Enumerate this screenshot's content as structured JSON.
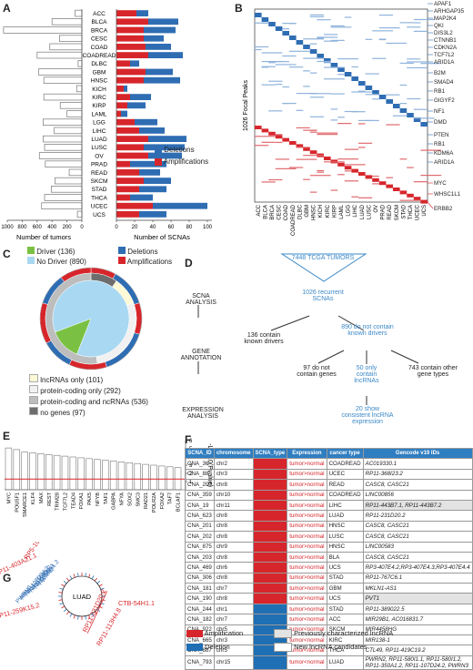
{
  "panel_labels": {
    "a": "A",
    "b": "B",
    "c": "C",
    "d": "D",
    "e": "E",
    "f": "F",
    "g": "G"
  },
  "chart_data": [
    {
      "type": "bar",
      "panel": "A-left",
      "categories": [
        "ACC",
        "BLCA",
        "BRCA",
        "CESC",
        "COAD",
        "COADREAD",
        "DLBC",
        "GBM",
        "HNSC",
        "KICH",
        "KIRC",
        "KIRP",
        "LAML",
        "LGG",
        "LIHC",
        "LUAD",
        "LUSC",
        "OV",
        "PRAD",
        "READ",
        "SKCM",
        "STAD",
        "THCA",
        "UCEC",
        "UCS"
      ],
      "values": [
        90,
        400,
        1050,
        300,
        430,
        600,
        50,
        580,
        510,
        70,
        510,
        290,
        200,
        520,
        370,
        520,
        500,
        570,
        490,
        170,
        360,
        410,
        500,
        540,
        60
      ],
      "xlabel": "Number of tumors",
      "xticks": [
        1000,
        800,
        600,
        400,
        200,
        0
      ],
      "xlim": [
        0,
        1100
      ]
    },
    {
      "type": "bar",
      "panel": "A-right",
      "categories": [
        "ACC",
        "BLCA",
        "BRCA",
        "CESC",
        "COAD",
        "COADREAD",
        "DLBC",
        "GBM",
        "HNSC",
        "KICH",
        "KIRC",
        "KIRP",
        "LAML",
        "LGG",
        "LIHC",
        "LUAD",
        "LUSC",
        "OV",
        "PRAD",
        "READ",
        "SKCM",
        "STAD",
        "THCA",
        "UCEC",
        "UCS"
      ],
      "series": [
        {
          "name": "Amplifications",
          "color": "#d7262b",
          "values": [
            22,
            35,
            30,
            30,
            32,
            35,
            15,
            32,
            30,
            8,
            15,
            12,
            5,
            20,
            25,
            35,
            30,
            35,
            15,
            25,
            30,
            25,
            15,
            40,
            25
          ]
        },
        {
          "name": "Deletions",
          "color": "#2f6db3",
          "values": [
            13,
            33,
            35,
            22,
            28,
            38,
            10,
            30,
            40,
            4,
            23,
            20,
            7,
            25,
            28,
            42,
            45,
            37,
            40,
            23,
            30,
            30,
            25,
            60,
            30
          ]
        }
      ],
      "xlabel": "Number of SCNAs",
      "xticks": [
        0,
        20,
        40,
        60,
        80,
        100
      ],
      "xlim": [
        0,
        110
      ],
      "legend": [
        "Deletions",
        "Amplifications"
      ]
    }
  ],
  "panel_b": {
    "ylabel": "1026 Focal Peaks",
    "genes": [
      "APAF1",
      "ARHGAP35",
      "MAP2K4",
      "QKI",
      "DIS3L2",
      "CTNNB1",
      "CDKN2A",
      "TCF7L2",
      "ARID1A",
      "B2M",
      "SMAD4",
      "RB1",
      "GIGYF2",
      "NF1",
      "DMD",
      "PTEN",
      "RB1",
      "KDM6A",
      "ARID1A",
      "MYC",
      "WHSC1L1",
      "ERBB2"
    ],
    "columns": [
      "ACC",
      "BLCA",
      "BRCA",
      "CESC",
      "COAD",
      "COADREAD",
      "DLBC",
      "GBM",
      "HNSC",
      "KICH",
      "KIRC",
      "KIRP",
      "LAML",
      "LGG",
      "LIHC",
      "LUAD",
      "LUSC",
      "OV",
      "PRAD",
      "READ",
      "SKCM",
      "STAD",
      "THCA",
      "UCEC",
      "UCS"
    ]
  },
  "panel_c": {
    "legend_top": [
      {
        "label": "Driver (136)",
        "color": "#7ac143"
      },
      {
        "label": "No Driver (890)",
        "color": "#a9d8f2"
      }
    ],
    "legend_right": [
      {
        "label": "Deletions",
        "color": "#2f6db3"
      },
      {
        "label": "Amplifications",
        "color": "#d7262b"
      }
    ],
    "legend_bottom": [
      {
        "label": "lncRNAs only (101)",
        "color": "#fdf8d5"
      },
      {
        "label": "protein-coding only (292)",
        "color": "#f1f1f1"
      },
      {
        "label": "protein-coding and ncRNAs (536)",
        "color": "#bdbdbd"
      },
      {
        "label": "no genes (97)",
        "color": "#6d6d6d"
      }
    ]
  },
  "panel_d": {
    "top": "7448 TCGA TUMORS",
    "recurrent": "1026 recurrent SCNAs",
    "left": "136 contain known drivers",
    "right": "890 do not contain known drivers",
    "no_genes": "97 do not contain genes",
    "lnc": "50 only contain lncRNAs",
    "other": "743 contain other gene types",
    "expr": "20 show consistent lncRNA expression",
    "steps": [
      "SCNA ANALYSIS",
      "GENE ANNOTATION",
      "EXPRESSION ANALYSIS"
    ]
  },
  "panel_e": {
    "genes": [
      "MYC",
      "POU5F1",
      "SMARCE1",
      "KLF4",
      "MAX",
      "REST",
      "TRIM28",
      "TCF7L2",
      "TEAD4",
      "FOXA1",
      "PAX5",
      "NFYB",
      "TAF1",
      "GABPA",
      "NFYA",
      "SOX2",
      "SMC3",
      "RAD21",
      "POLR2A",
      "FOXA2",
      "TAF7",
      "BCLAF1"
    ],
    "values": [
      5.1,
      4.9,
      4.6,
      4.5,
      4.4,
      4.3,
      4.2,
      4.1,
      4.0,
      3.9,
      3.8,
      3.7,
      3.6,
      3.5,
      3.4,
      3.3,
      3.2,
      3.1,
      3.0,
      2.9,
      2.8,
      2.7
    ],
    "ylabel": "-Log10(Pvalue)",
    "yticks": [
      1,
      2,
      3,
      4,
      5,
      6
    ],
    "ylim": [
      0,
      6
    ],
    "threshold": 1.3
  },
  "panel_f": {
    "headers": [
      "SCNA_ID",
      "chromosome",
      "SCNA_type",
      "Expression",
      "cancer type",
      "Gencode v19 IDs"
    ],
    "rows": [
      [
        "CNA_36",
        "chr2",
        "amp",
        "tumor>normal",
        "COADREAD",
        "AC019330.1",
        "new"
      ],
      [
        "CNA_88",
        "chr3",
        "amp",
        "tumor>normal",
        "UCEC",
        "RP11-368I23.2",
        "new"
      ],
      [
        "CNA_200",
        "chr8",
        "amp",
        "tumor>normal",
        "READ",
        "CASC8, CASC21",
        "new"
      ],
      [
        "CNA_359",
        "chr10",
        "amp",
        "tumor>normal",
        "COADREAD",
        "LINC00856",
        "new"
      ],
      [
        "CNA_19",
        "chr11",
        "amp",
        "tumor>normal",
        "LIHC",
        "RP11-443B7.1, RP11-443B7.2",
        "old"
      ],
      [
        "CNA_623",
        "chr8",
        "amp",
        "tumor>normal",
        "LUAD",
        "RP11-231D20.2",
        "new"
      ],
      [
        "CNA_201",
        "chr8",
        "amp",
        "tumor>normal",
        "HNSC",
        "CASC8, CASC21",
        "new"
      ],
      [
        "CNA_202",
        "chr8",
        "amp",
        "tumor>normal",
        "LUSC",
        "CASC8, CASC21",
        "new"
      ],
      [
        "CNA_875",
        "chr9",
        "amp",
        "tumor>normal",
        "HNSC",
        "LINC00583",
        "new"
      ],
      [
        "CNA_203",
        "chr8",
        "amp",
        "tumor>normal",
        "BLA",
        "CASC8, CASC21",
        "new"
      ],
      [
        "CNA_469",
        "chr6",
        "amp",
        "tumor>normal",
        "UCS",
        "RP3-407E4.2,RP3-407E4.3,RP3-407E4.4",
        "new"
      ],
      [
        "CNA_306",
        "chr8",
        "amp",
        "tumor>normal",
        "STAD",
        "RP11-767C6.1",
        "new"
      ],
      [
        "CNA_181",
        "chr7",
        "amp",
        "tumor>normal",
        "GBM",
        "MKLN1-AS1",
        "new"
      ],
      [
        "CNA_190",
        "chr8",
        "amp",
        "tumor>normal",
        "UCS",
        "PVT1",
        "old"
      ],
      [
        "CNA_244",
        "chr1",
        "del",
        "tumor>normal",
        "STAD",
        "RP11-389022.5",
        "new"
      ],
      [
        "CNA_182",
        "chr7",
        "del",
        "tumor<normal",
        "ACC",
        "MIR29B1, AC016831.7",
        "new"
      ],
      [
        "CNA_922",
        "chr5",
        "del",
        "tumor<normal",
        "SKCM",
        "MIR4458HG",
        "new"
      ],
      [
        "CNA_665",
        "chr3",
        "del",
        "tumor<normal",
        "KIRC",
        "MIR138-1",
        "new"
      ],
      [
        "CNA_887",
        "chr5",
        "del",
        "tumor<normal",
        "THCA",
        "CTL49, RP11-419C19.2",
        "new"
      ],
      [
        "CNA_793",
        "chr15",
        "del",
        "tumor<normal",
        "LUAD",
        "PWRN2, RP11-580I1.1, RP11-580I1.2, RP11-350A1.2, RP11-107D24.2, PWRN3",
        "new"
      ]
    ],
    "legend": {
      "amp": "Amplification",
      "del": "Deletion",
      "old": "Previously characterized lncRNA",
      "new": "New lncRNA candidates"
    }
  },
  "panel_g": {
    "center": "LUAD",
    "red_labels": [
      "RP5-1084B",
      "RP11-403A21.1",
      "CTB-54H1.1",
      "RP11-259K15.2",
      "RP11-231D20.2",
      "RP11-113H4.8"
    ],
    "blue_labels": [
      "PWRN3",
      "RP11-107D24.2",
      "RP11-350A1.2",
      "RP11-580I1.1",
      "RP11-580I1.2",
      "PWRN2"
    ]
  }
}
